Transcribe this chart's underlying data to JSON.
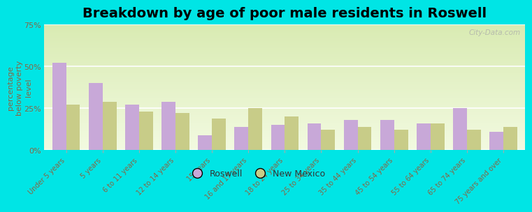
{
  "title": "Breakdown by age of poor male residents in Roswell",
  "ylabel": "percentage\nbelow poverty\nlevel",
  "categories": [
    "Under 5 years",
    "5 years",
    "6 to 11 years",
    "12 to 14 years",
    "15 years",
    "16 and 17 years",
    "18 to 24 years",
    "25 to 34 years",
    "35 to 44 years",
    "45 to 54 years",
    "55 to 64 years",
    "65 to 74 years",
    "75 years and over"
  ],
  "roswell": [
    52,
    40,
    27,
    29,
    9,
    14,
    15,
    16,
    18,
    18,
    16,
    25,
    11
  ],
  "new_mexico": [
    27,
    29,
    23,
    22,
    19,
    25,
    20,
    12,
    14,
    12,
    16,
    12,
    14
  ],
  "ylim": [
    0,
    75
  ],
  "yticks": [
    0,
    25,
    50,
    75
  ],
  "ytick_labels": [
    "0%",
    "25%",
    "50%",
    "75%"
  ],
  "roswell_color": "#c8a8d8",
  "new_mexico_color": "#c8cc88",
  "fig_bg": "#00e5e5",
  "title_fontsize": 14,
  "ylabel_fontsize": 8,
  "tick_fontsize": 8,
  "xtick_fontsize": 7,
  "legend_fontsize": 9,
  "text_color": "#886644",
  "ytick_color": "#886644",
  "watermark": "City-Data.com"
}
